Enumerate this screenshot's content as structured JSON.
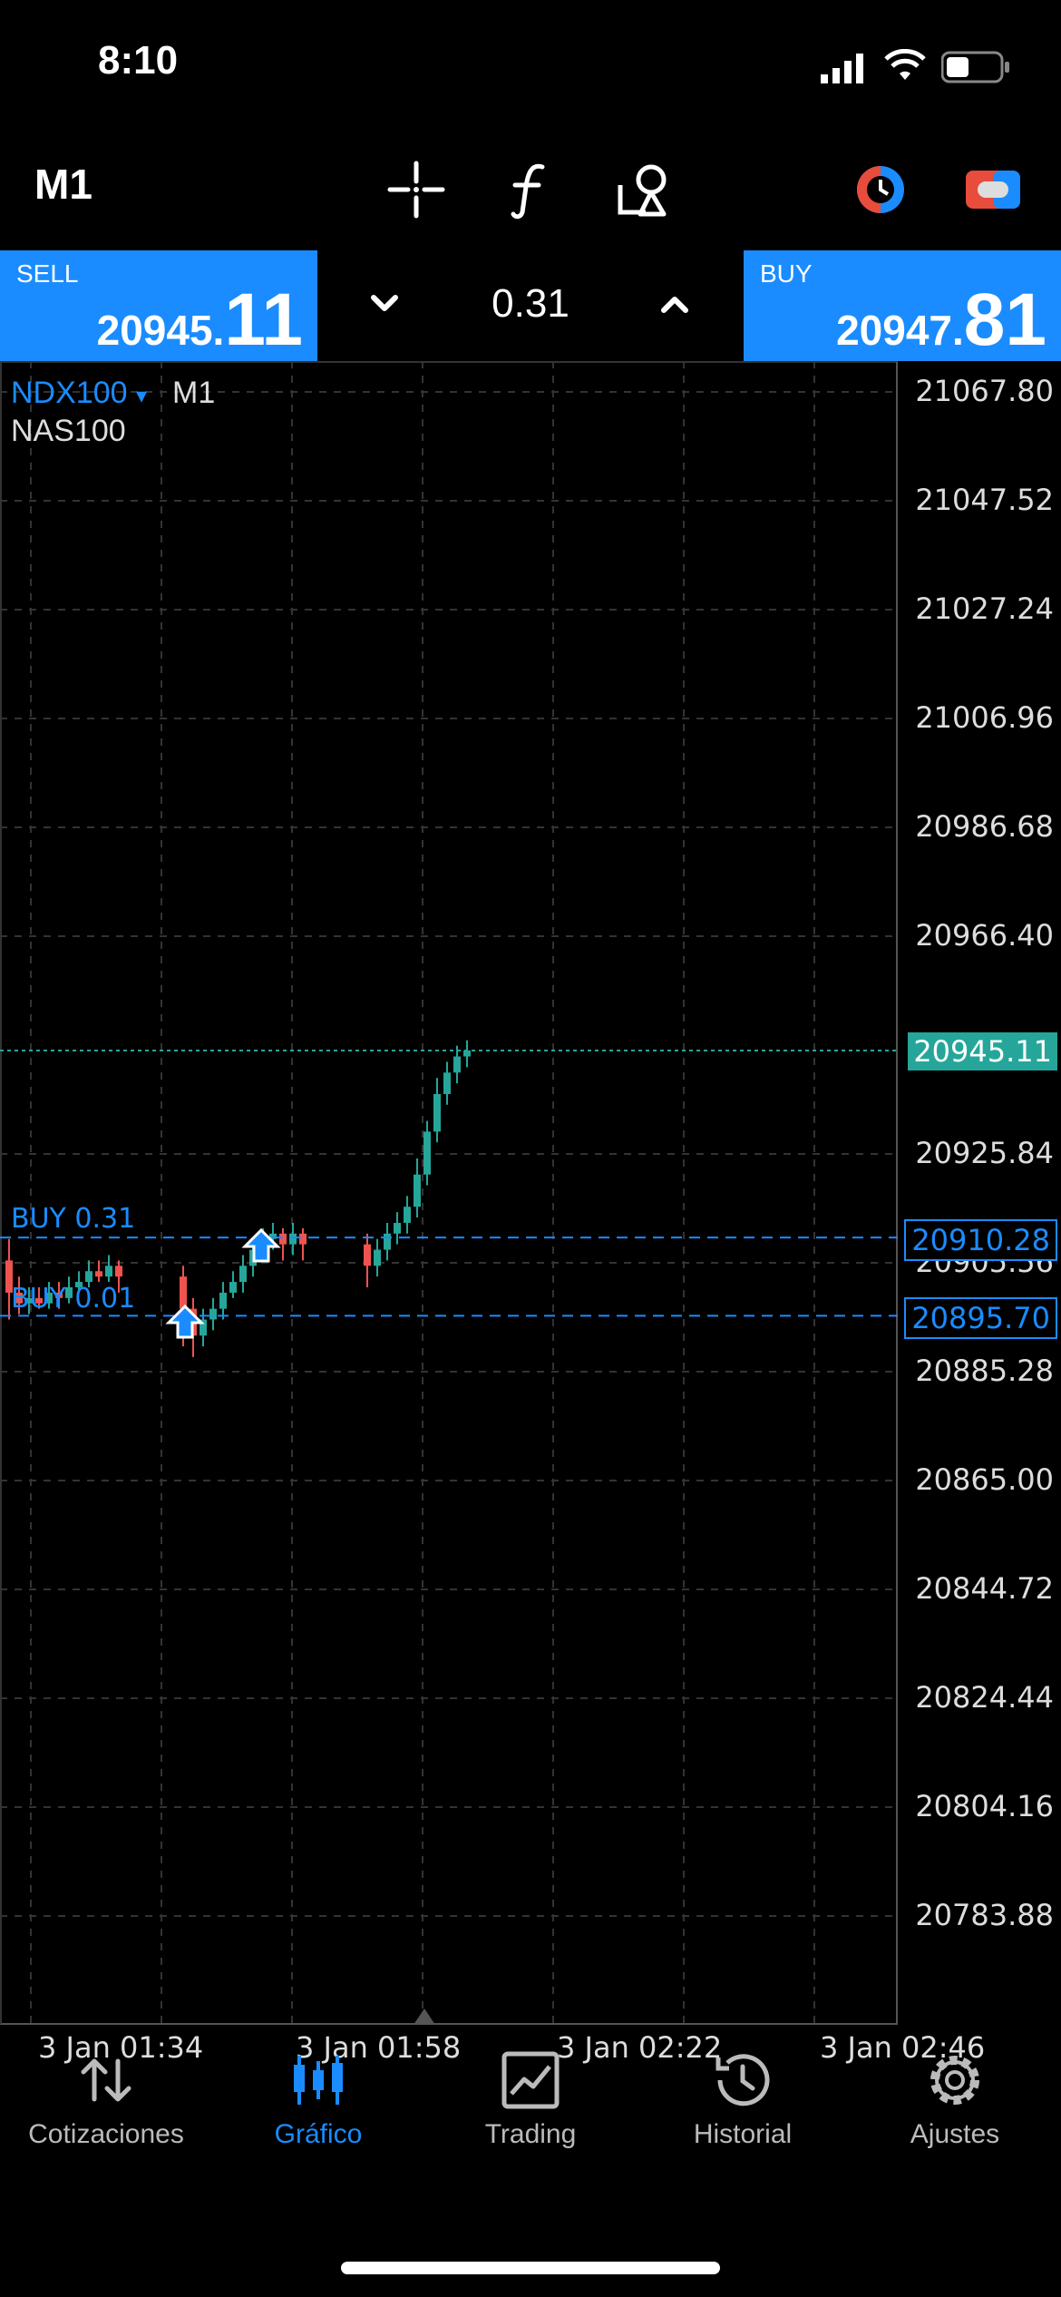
{
  "status_bar": {
    "time": "8:10"
  },
  "toolbar": {
    "timeframe": "M1"
  },
  "trade_panel": {
    "sell_label": "SELL",
    "sell_price_small": "20945.",
    "sell_price_big": "11",
    "lot": "0.31",
    "buy_label": "BUY",
    "buy_price_small": "20947.",
    "buy_price_big": "81"
  },
  "chart": {
    "symbol": "NDX100",
    "symbol_arrow": "▾",
    "timeframe": "M1",
    "description": "NAS100",
    "y_ticks": [
      "21067.80",
      "21047.52",
      "21027.24",
      "21006.96",
      "20986.68",
      "20966.40",
      "20925.84",
      "20905.56",
      "20885.28",
      "20865.00",
      "20844.72",
      "20824.44",
      "20804.16",
      "20783.88"
    ],
    "x_ticks": [
      "3 Jan 01:34",
      "3 Jan 01:58",
      "3 Jan 02:22",
      "3 Jan 02:46"
    ],
    "current_price": "20945.11",
    "positions": [
      {
        "label": "BUY  0.31",
        "price": "20910.28"
      },
      {
        "label": "BUY  0.01",
        "price": "20895.70"
      }
    ],
    "colors": {
      "up": "#26a69a",
      "down": "#ef5350",
      "accent": "#1a8cff"
    }
  },
  "tabs": [
    {
      "label": "Cotizaciones",
      "icon": "quotes-icon",
      "active": false
    },
    {
      "label": "Gráfico",
      "icon": "chart-icon",
      "active": true
    },
    {
      "label": "Trading",
      "icon": "trading-icon",
      "active": false
    },
    {
      "label": "Historial",
      "icon": "history-icon",
      "active": false
    },
    {
      "label": "Ajustes",
      "icon": "settings-icon",
      "active": false
    }
  ]
}
